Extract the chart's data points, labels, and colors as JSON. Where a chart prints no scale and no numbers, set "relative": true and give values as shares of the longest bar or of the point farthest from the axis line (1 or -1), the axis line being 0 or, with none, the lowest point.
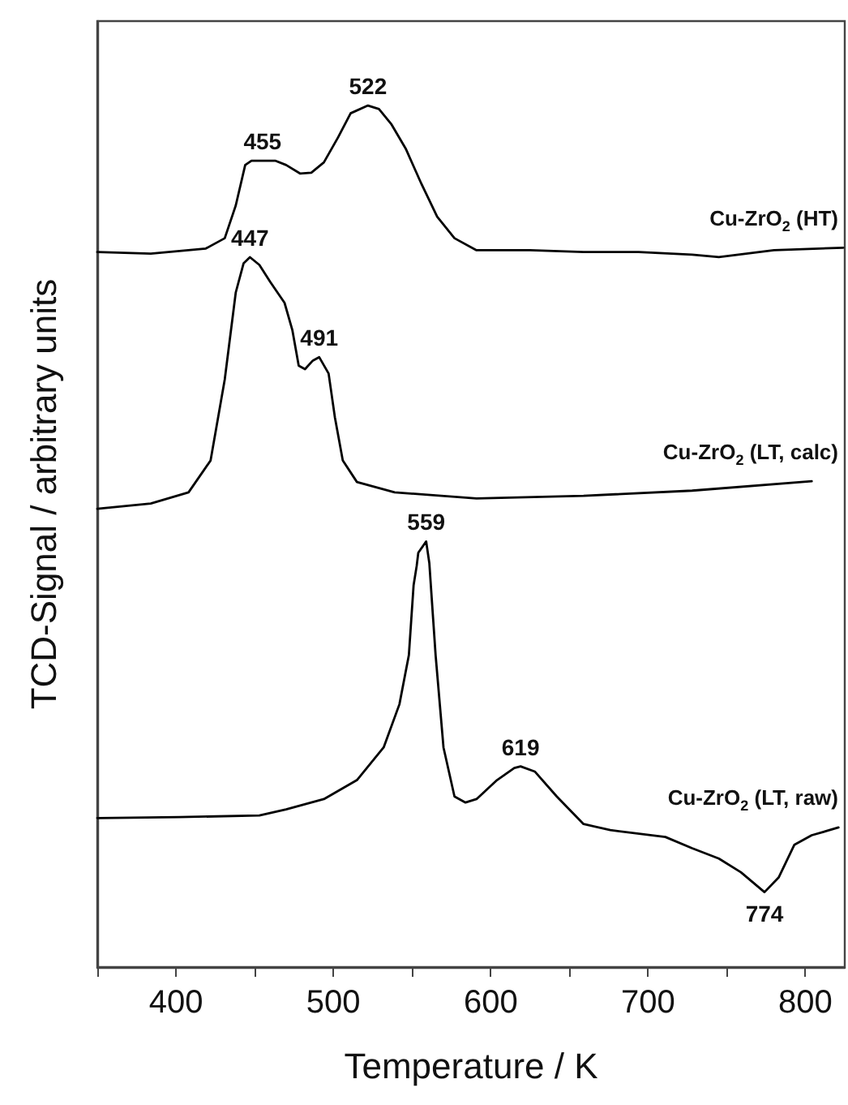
{
  "chart_data": {
    "type": "line",
    "relative": true,
    "xlabel": "Temperature / K",
    "ylabel": "TCD-Signal / arbitrary units",
    "xlim": [
      350,
      825
    ],
    "xticks": [
      {
        "value": 350,
        "label": null
      },
      400,
      {
        "value": 450,
        "label": null
      },
      500,
      {
        "value": 550,
        "label": null
      },
      600,
      {
        "value": 650,
        "label": null
      },
      700,
      {
        "value": 750,
        "label": null
      },
      800
    ],
    "grid": false,
    "legend": false,
    "marker": "none",
    "line_style": "solid",
    "series": [
      {
        "name": "Cu-ZrO$_{2}$ (HT)",
        "color": "#000000",
        "x": [
          350,
          384,
          419,
          431,
          438,
          444,
          448,
          463,
          470,
          479,
          486,
          494,
          503,
          511,
          522,
          529,
          537,
          546,
          556,
          566,
          577,
          591,
          625,
          659,
          694,
          728,
          745,
          780,
          824
        ],
        "values": [
          0.83,
          0.828,
          0.834,
          0.846,
          0.884,
          0.931,
          0.936,
          0.936,
          0.931,
          0.921,
          0.922,
          0.934,
          0.963,
          0.991,
          1,
          0.996,
          0.978,
          0.95,
          0.909,
          0.871,
          0.846,
          0.832,
          0.832,
          0.83,
          0.83,
          0.827,
          0.824,
          0.832,
          0.835
        ]
      },
      {
        "name": "Cu-ZrO$_{2}$ (LT, calc)",
        "color": "#000000",
        "x": [
          350,
          384,
          408,
          422,
          431,
          438,
          443,
          447,
          453,
          460,
          469,
          474,
          478,
          482,
          487,
          491,
          497,
          501,
          506,
          515,
          539,
          591,
          659,
          728,
          804
        ],
        "values": [
          0.532,
          0.538,
          0.551,
          0.588,
          0.682,
          0.783,
          0.817,
          0.824,
          0.815,
          0.795,
          0.771,
          0.739,
          0.698,
          0.694,
          0.704,
          0.708,
          0.689,
          0.638,
          0.588,
          0.563,
          0.551,
          0.544,
          0.547,
          0.553,
          0.564
        ]
      },
      {
        "name": "Cu-ZrO$_{2}$ (LT, raw)",
        "color": "#000000",
        "x": [
          350,
          402,
          453,
          470,
          494,
          515,
          532,
          542,
          548,
          551,
          553,
          554,
          559,
          561,
          565,
          570,
          577,
          584,
          591,
          604,
          615,
          619,
          628,
          642,
          659,
          676,
          711,
          728,
          745,
          759,
          774,
          783,
          793,
          804,
          821
        ],
        "values": [
          0.173,
          0.174,
          0.176,
          0.183,
          0.195,
          0.217,
          0.255,
          0.305,
          0.362,
          0.443,
          0.466,
          0.481,
          0.494,
          0.469,
          0.362,
          0.255,
          0.198,
          0.191,
          0.195,
          0.217,
          0.231,
          0.233,
          0.227,
          0.198,
          0.166,
          0.159,
          0.151,
          0.138,
          0.126,
          0.11,
          0.087,
          0.104,
          0.142,
          0.153,
          0.162
        ]
      }
    ],
    "annotations": [
      {
        "text": "455",
        "x": 455,
        "y": 0.936
      },
      {
        "text": "522",
        "x": 522,
        "y": 1
      },
      {
        "text": "447",
        "x": 447,
        "y": 0.824
      },
      {
        "text": "491",
        "x": 491,
        "y": 0.708
      },
      {
        "text": "559",
        "x": 559,
        "y": 0.494
      },
      {
        "text": "619",
        "x": 619,
        "y": 0.233
      },
      {
        "text": "774",
        "x": 774,
        "y": 0.087
      }
    ]
  }
}
